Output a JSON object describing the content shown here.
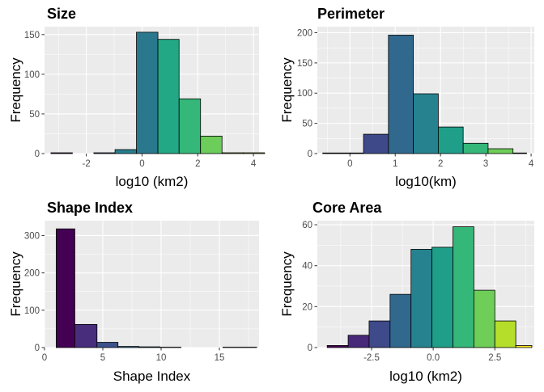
{
  "panel_background": "#ebebeb",
  "gridline_color": "#ffffff",
  "bar_outline": "#000000",
  "chart_data": [
    {
      "type": "bar",
      "title": "Size",
      "xlabel": "log10 (km2)",
      "ylabel": "Frequency",
      "xlim": [
        -3.5,
        4.2
      ],
      "ylim": [
        0,
        160
      ],
      "x_ticks": [
        -2,
        0,
        2,
        4
      ],
      "y_ticks": [
        0,
        50,
        100,
        150
      ],
      "grid": true,
      "bins": [
        {
          "x0": -3.27,
          "x1": -2.5,
          "value": 1,
          "color": "#440154"
        },
        {
          "x0": -2.5,
          "x1": -1.73,
          "value": 0,
          "color": "#46337e"
        },
        {
          "x0": -1.73,
          "x1": -0.97,
          "value": 1,
          "color": "#365c8d"
        },
        {
          "x0": -0.97,
          "x1": -0.2,
          "value": 5,
          "color": "#277f8e"
        },
        {
          "x0": -0.2,
          "x1": 0.57,
          "value": 153,
          "color": "#2a788e"
        },
        {
          "x0": 0.57,
          "x1": 1.33,
          "value": 144,
          "color": "#22a884"
        },
        {
          "x0": 1.33,
          "x1": 2.1,
          "value": 69,
          "color": "#35b779"
        },
        {
          "x0": 2.1,
          "x1": 2.87,
          "value": 22,
          "color": "#6ccd5a"
        },
        {
          "x0": 2.87,
          "x1": 3.63,
          "value": 1,
          "color": "#a2da37"
        },
        {
          "x0": 3.63,
          "x1": 4.4,
          "value": 1,
          "color": "#fde725"
        }
      ]
    },
    {
      "type": "bar",
      "title": "Perimeter",
      "xlabel": "log10(km)",
      "ylabel": "Frequency",
      "xlim": [
        -0.72,
        4.07
      ],
      "ylim": [
        0,
        210
      ],
      "x_ticks": [
        0,
        1,
        2,
        3,
        4
      ],
      "y_ticks": [
        0,
        50,
        100,
        150,
        200
      ],
      "grid": true,
      "bins": [
        {
          "x0": -0.6,
          "x1": 0.0,
          "value": 1,
          "color": "#440154"
        },
        {
          "x0": 0.0,
          "x1": 0.3,
          "value": 1,
          "color": "#482878"
        },
        {
          "x0": 0.3,
          "x1": 0.85,
          "value": 32,
          "color": "#3e4989"
        },
        {
          "x0": 0.85,
          "x1": 1.4,
          "value": 196,
          "color": "#31688e"
        },
        {
          "x0": 1.4,
          "x1": 1.95,
          "value": 99,
          "color": "#26828e"
        },
        {
          "x0": 1.95,
          "x1": 2.5,
          "value": 44,
          "color": "#1f9e89"
        },
        {
          "x0": 2.5,
          "x1": 3.05,
          "value": 17,
          "color": "#35b779"
        },
        {
          "x0": 3.05,
          "x1": 3.6,
          "value": 8,
          "color": "#6ece58"
        },
        {
          "x0": 3.6,
          "x1": 3.9,
          "value": 1,
          "color": "#b5de2b"
        }
      ]
    },
    {
      "type": "bar",
      "title": "Shape Index",
      "xlabel": "Shape Index",
      "ylabel": "Frequency",
      "xlim": [
        0,
        18.4
      ],
      "ylim": [
        0,
        340
      ],
      "x_ticks": [
        0,
        5,
        10,
        15
      ],
      "y_ticks": [
        0,
        100,
        200,
        300
      ],
      "grid": true,
      "bins": [
        {
          "x0": 1.0,
          "x1": 2.6,
          "value": 318,
          "color": "#440154"
        },
        {
          "x0": 2.6,
          "x1": 4.5,
          "value": 62,
          "color": "#472d7b"
        },
        {
          "x0": 4.5,
          "x1": 6.3,
          "value": 14,
          "color": "#3b528b"
        },
        {
          "x0": 6.3,
          "x1": 8.1,
          "value": 3,
          "color": "#2c728e"
        },
        {
          "x0": 8.1,
          "x1": 9.9,
          "value": 2,
          "color": "#21918c"
        },
        {
          "x0": 9.9,
          "x1": 11.7,
          "value": 1,
          "color": "#28ae80"
        },
        {
          "x0": 11.7,
          "x1": 13.5,
          "value": 0,
          "color": "#5ec962"
        },
        {
          "x0": 13.5,
          "x1": 15.3,
          "value": 0,
          "color": "#addc30"
        },
        {
          "x0": 15.3,
          "x1": 18.2,
          "value": 1,
          "color": "#fde725"
        }
      ]
    },
    {
      "type": "bar",
      "title": "Core Area",
      "xlabel": "log10 (km2)",
      "ylabel": "Frequency",
      "xlim": [
        -4.7,
        4.1
      ],
      "ylim": [
        0,
        62
      ],
      "x_ticks": [
        -2.5,
        0.0,
        2.5
      ],
      "x_tick_labels": [
        "-2.5",
        "0.0",
        "2.5"
      ],
      "y_ticks": [
        0,
        20,
        40,
        60
      ],
      "grid": true,
      "bins": [
        {
          "x0": -4.3,
          "x1": -3.45,
          "value": 1,
          "color": "#440154"
        },
        {
          "x0": -3.45,
          "x1": -2.6,
          "value": 6,
          "color": "#482878"
        },
        {
          "x0": -2.6,
          "x1": -1.75,
          "value": 13,
          "color": "#3e4a89"
        },
        {
          "x0": -1.75,
          "x1": -0.9,
          "value": 26,
          "color": "#31688e"
        },
        {
          "x0": -0.9,
          "x1": -0.05,
          "value": 48,
          "color": "#26828e"
        },
        {
          "x0": -0.05,
          "x1": 0.8,
          "value": 49,
          "color": "#1f9e89"
        },
        {
          "x0": 0.8,
          "x1": 1.65,
          "value": 59,
          "color": "#35b779"
        },
        {
          "x0": 1.65,
          "x1": 2.5,
          "value": 28,
          "color": "#6ece58"
        },
        {
          "x0": 2.5,
          "x1": 3.35,
          "value": 13,
          "color": "#b5de2b"
        },
        {
          "x0": 3.35,
          "x1": 4.0,
          "value": 1,
          "color": "#fde725"
        }
      ]
    }
  ]
}
